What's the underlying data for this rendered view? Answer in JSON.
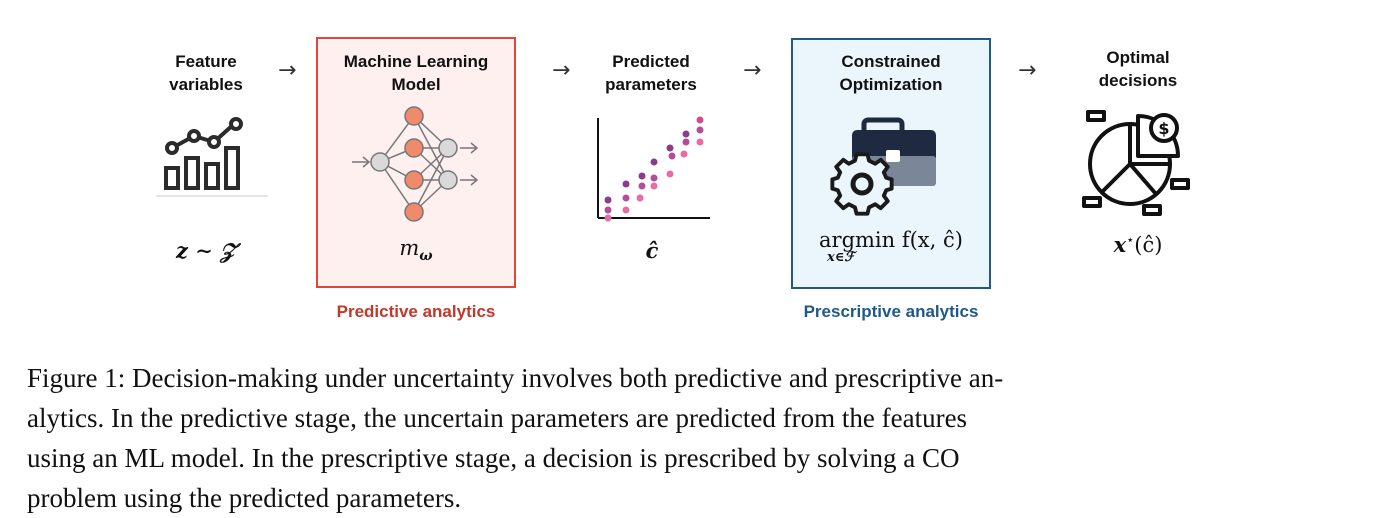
{
  "diagram": {
    "stages": [
      {
        "title": [
          "Feature",
          "variables"
        ],
        "symbol": "z ∼ 𝒵",
        "icon": "bar-line-chart-icon"
      },
      {
        "title": [
          "Machine Learning",
          "Model"
        ],
        "symbol": "m",
        "symbol_sub": "ω",
        "icon": "neural-network-icon"
      },
      {
        "title": [
          "Predicted",
          "parameters"
        ],
        "symbol": "ĉ",
        "icon": "scatter-plot-icon"
      },
      {
        "title": [
          "Constrained",
          "Optimization"
        ],
        "symbol": "argmin f(x, ĉ)",
        "symbol_sub": "x∈ℱ",
        "icon": "briefcase-gear-icon"
      },
      {
        "title": [
          "Optimal",
          "decisions"
        ],
        "symbol": "x",
        "symbol_sup": "⋆",
        "symbol_tail": "(ĉ)",
        "icon": "pie-chart-dollar-icon"
      }
    ],
    "arrow": "→",
    "sections": {
      "predictive": {
        "label": "Predictive analytics",
        "color": "#c0392b"
      },
      "prescriptive": {
        "label": "Prescriptive analytics",
        "color": "#1f5a87"
      }
    }
  },
  "caption": {
    "lines": [
      "Figure 1: Decision-making under uncertainty involves both predictive and prescriptive an-",
      "alytics. In the predictive stage, the uncertain parameters are predicted from the features",
      "using an ML model. In the prescriptive stage, a decision is prescribed by solving a CO",
      "problem using the predicted parameters."
    ]
  }
}
